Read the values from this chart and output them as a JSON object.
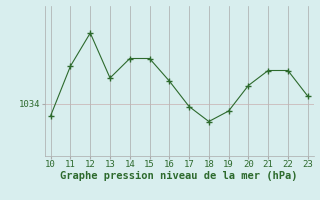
{
  "x": [
    10,
    11,
    12,
    13,
    14,
    15,
    16,
    17,
    18,
    19,
    20,
    21,
    22,
    23
  ],
  "y": [
    1033.2,
    1036.5,
    1038.7,
    1035.7,
    1037.0,
    1037.0,
    1035.5,
    1033.8,
    1032.8,
    1033.5,
    1035.2,
    1036.2,
    1036.2,
    1034.5
  ],
  "xlabel": "Graphe pression niveau de la mer (hPa)",
  "ytick_label": "1034",
  "ytick_value": 1034,
  "line_color": "#2d6a2d",
  "background_color": "#d8eeee",
  "grid_color_x": "#aaaaaa",
  "grid_color_y": "#c8b0b0",
  "xmin": 10,
  "xmax": 23,
  "ymin": 1030.5,
  "ymax": 1040.5,
  "xlabel_fontsize": 7.5,
  "tick_fontsize": 6.5
}
